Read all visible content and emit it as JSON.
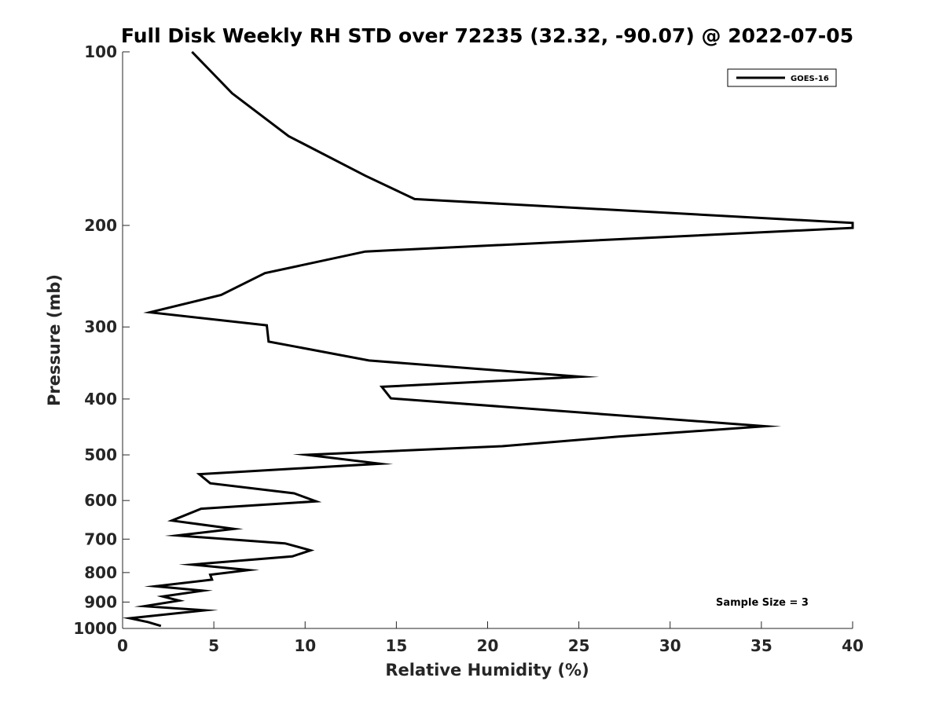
{
  "chart_data": {
    "type": "line",
    "title": "Full Disk Weekly RH STD over 72235 (32.32, -90.07) @ 2022-07-05",
    "xlabel": "Relative Humidity (%)",
    "ylabel": "Pressure (mb)",
    "xlim": [
      0,
      40
    ],
    "ylim": [
      100,
      1000
    ],
    "yscale": "log",
    "yreversed": true,
    "xticks": [
      0,
      5,
      10,
      15,
      20,
      25,
      30,
      35,
      40
    ],
    "yticks": [
      100,
      200,
      300,
      400,
      500,
      600,
      700,
      800,
      900,
      1000
    ],
    "grid": false,
    "legend": {
      "position": "top-right",
      "entries": [
        "GOES-16"
      ]
    },
    "annotation": "Sample Size = 3",
    "series": [
      {
        "name": "GOES-16",
        "color": "#000000",
        "points": [
          [
            3.8,
            100
          ],
          [
            6.0,
            118
          ],
          [
            9.1,
            140
          ],
          [
            13.3,
            164
          ],
          [
            16.0,
            180
          ],
          [
            40.0,
            198
          ],
          [
            40.0,
            202
          ],
          [
            13.3,
            222
          ],
          [
            7.8,
            242
          ],
          [
            5.4,
            264
          ],
          [
            1.5,
            283
          ],
          [
            7.9,
            298
          ],
          [
            8.0,
            318
          ],
          [
            13.5,
            343
          ],
          [
            25.1,
            366
          ],
          [
            14.2,
            381
          ],
          [
            14.7,
            399
          ],
          [
            35.2,
            446
          ],
          [
            27.1,
            465
          ],
          [
            20.8,
            483
          ],
          [
            10.1,
            500
          ],
          [
            14.1,
            518
          ],
          [
            4.2,
            540
          ],
          [
            4.8,
            560
          ],
          [
            9.4,
            583
          ],
          [
            10.6,
            602
          ],
          [
            4.3,
            620
          ],
          [
            2.7,
            650
          ],
          [
            6.1,
            672
          ],
          [
            3.0,
            690
          ],
          [
            8.9,
            712
          ],
          [
            10.3,
            732
          ],
          [
            9.3,
            750
          ],
          [
            3.8,
            775
          ],
          [
            6.9,
            792
          ],
          [
            4.8,
            807
          ],
          [
            4.9,
            823
          ],
          [
            1.8,
            845
          ],
          [
            4.4,
            860
          ],
          [
            2.2,
            880
          ],
          [
            3.1,
            895
          ],
          [
            1.2,
            915
          ],
          [
            4.5,
            930
          ],
          [
            0.4,
            960
          ],
          [
            1.4,
            975
          ],
          [
            2.1,
            990
          ]
        ]
      }
    ]
  }
}
